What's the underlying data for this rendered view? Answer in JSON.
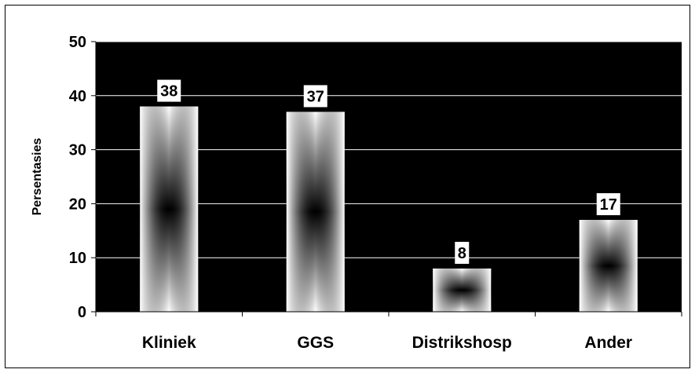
{
  "chart_data": {
    "type": "bar",
    "title": "",
    "xlabel": "",
    "ylabel": "Persentasies",
    "categories": [
      "Kliniek",
      "GGS",
      "Distrikshosp",
      "Ander"
    ],
    "values": [
      38,
      37,
      8,
      17
    ],
    "data_labels": [
      "38",
      "37",
      "8",
      "17"
    ],
    "ylim": [
      0,
      50
    ],
    "yticks": [
      0,
      10,
      20,
      30,
      40,
      50
    ],
    "grid": true,
    "legend": "none",
    "colors": {
      "plot_background": "#000000",
      "gridline": "#ffffff",
      "bar_edge": "#ffffff",
      "bar_center": "#000000",
      "label_box": "#ffffff",
      "text": "#000000"
    }
  }
}
